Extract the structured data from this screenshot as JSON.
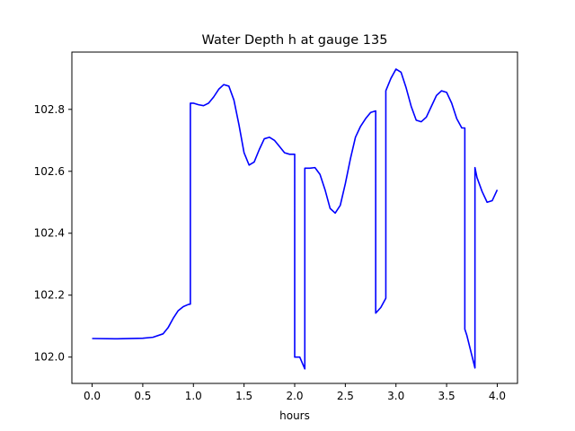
{
  "chart_data": {
    "type": "line",
    "title": "Water Depth h at gauge 135",
    "xlabel": "hours",
    "ylabel": "",
    "xlim": [
      -0.2,
      4.2
    ],
    "ylim": [
      101.915,
      102.985
    ],
    "xticks": [
      0.0,
      0.5,
      1.0,
      1.5,
      2.0,
      2.5,
      3.0,
      3.5,
      4.0
    ],
    "xtick_labels": [
      "0.0",
      "0.5",
      "1.0",
      "1.5",
      "2.0",
      "2.5",
      "3.0",
      "3.5",
      "4.0"
    ],
    "yticks": [
      102.0,
      102.2,
      102.4,
      102.6,
      102.8
    ],
    "ytick_labels": [
      "102.0",
      "102.2",
      "102.4",
      "102.6",
      "102.8"
    ],
    "grid": false,
    "series": [
      {
        "color": "#0000ff",
        "x": [
          0.0,
          0.25,
          0.5,
          0.6,
          0.7,
          0.75,
          0.8,
          0.85,
          0.9,
          0.95,
          0.97,
          0.97,
          1.0,
          1.05,
          1.1,
          1.15,
          1.2,
          1.25,
          1.3,
          1.35,
          1.4,
          1.45,
          1.5,
          1.55,
          1.6,
          1.65,
          1.7,
          1.75,
          1.8,
          1.85,
          1.9,
          1.95,
          2.0,
          2.0,
          2.05,
          2.1,
          2.1,
          2.15,
          2.2,
          2.25,
          2.3,
          2.35,
          2.4,
          2.45,
          2.5,
          2.55,
          2.6,
          2.65,
          2.7,
          2.75,
          2.8,
          2.8,
          2.85,
          2.9,
          2.9,
          2.95,
          3.0,
          3.05,
          3.1,
          3.15,
          3.2,
          3.25,
          3.3,
          3.35,
          3.4,
          3.45,
          3.5,
          3.55,
          3.6,
          3.65,
          3.68,
          3.68,
          3.7,
          3.78,
          3.78,
          3.8,
          3.85,
          3.9,
          3.95,
          4.0
        ],
        "y": [
          102.06,
          102.059,
          102.061,
          102.064,
          102.075,
          102.095,
          102.125,
          102.15,
          102.163,
          102.17,
          102.171,
          102.82,
          102.82,
          102.815,
          102.812,
          102.82,
          102.84,
          102.865,
          102.88,
          102.875,
          102.83,
          102.75,
          102.66,
          102.62,
          102.63,
          102.67,
          102.705,
          102.71,
          102.7,
          102.68,
          102.66,
          102.655,
          102.655,
          102.0,
          102.0,
          101.962,
          102.61,
          102.61,
          102.612,
          102.59,
          102.54,
          102.48,
          102.465,
          102.49,
          102.56,
          102.64,
          102.71,
          102.745,
          102.77,
          102.79,
          102.795,
          102.142,
          102.16,
          102.19,
          102.86,
          102.9,
          102.93,
          102.92,
          102.87,
          102.81,
          102.765,
          102.76,
          102.775,
          102.81,
          102.845,
          102.86,
          102.855,
          102.82,
          102.77,
          102.74,
          102.74,
          102.09,
          102.07,
          101.965,
          102.612,
          102.58,
          102.535,
          102.5,
          102.505,
          102.54
        ]
      }
    ]
  }
}
